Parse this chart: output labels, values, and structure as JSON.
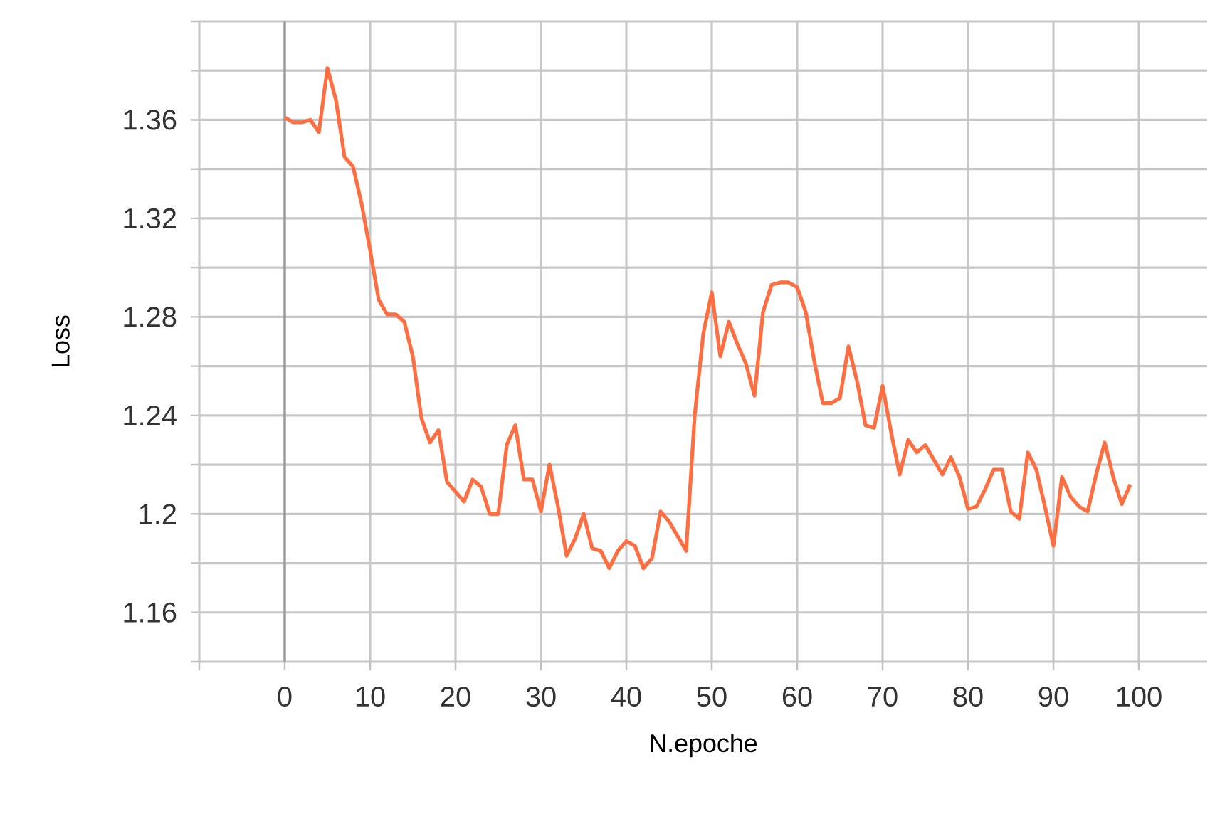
{
  "chart_data": {
    "type": "line",
    "xlabel": "N.epoche",
    "ylabel": "Loss",
    "x": [
      0,
      1,
      2,
      3,
      4,
      5,
      6,
      7,
      8,
      9,
      10,
      11,
      12,
      13,
      14,
      15,
      16,
      17,
      18,
      19,
      20,
      21,
      22,
      23,
      24,
      25,
      26,
      27,
      28,
      29,
      30,
      31,
      32,
      33,
      34,
      35,
      36,
      37,
      38,
      39,
      40,
      41,
      42,
      43,
      44,
      45,
      46,
      47,
      48,
      49,
      50,
      51,
      52,
      53,
      54,
      55,
      56,
      57,
      58,
      59,
      60,
      61,
      62,
      63,
      64,
      65,
      66,
      67,
      68,
      69,
      70,
      71,
      72,
      73,
      74,
      75,
      76,
      77,
      78,
      79,
      80,
      81,
      82,
      83,
      84,
      85,
      86,
      87,
      88,
      89,
      90,
      91,
      92,
      93,
      94,
      95,
      96,
      97,
      98,
      99
    ],
    "series": [
      {
        "color": "#ff6e40",
        "values": [
          1.361,
          1.359,
          1.359,
          1.36,
          1.355,
          1.381,
          1.368,
          1.345,
          1.341,
          1.326,
          1.307,
          1.287,
          1.281,
          1.281,
          1.278,
          1.264,
          1.239,
          1.229,
          1.234,
          1.213,
          1.209,
          1.205,
          1.214,
          1.211,
          1.2,
          1.2,
          1.228,
          1.236,
          1.214,
          1.214,
          1.201,
          1.22,
          1.203,
          1.183,
          1.19,
          1.2,
          1.186,
          1.185,
          1.178,
          1.185,
          1.189,
          1.187,
          1.178,
          1.182,
          1.201,
          1.197,
          1.191,
          1.185,
          1.24,
          1.273,
          1.29,
          1.264,
          1.278,
          1.269,
          1.261,
          1.248,
          1.282,
          1.293,
          1.294,
          1.294,
          1.292,
          1.282,
          1.262,
          1.245,
          1.245,
          1.247,
          1.268,
          1.254,
          1.236,
          1.235,
          1.252,
          1.233,
          1.216,
          1.23,
          1.225,
          1.228,
          1.222,
          1.216,
          1.223,
          1.215,
          1.202,
          1.203,
          1.21,
          1.218,
          1.218,
          1.201,
          1.198,
          1.225,
          1.218,
          1.203,
          1.187,
          1.215,
          1.207,
          1.203,
          1.201,
          1.216,
          1.229,
          1.215,
          1.204,
          1.212
        ]
      }
    ],
    "xlim": [
      -10,
      108
    ],
    "ylim": [
      1.14,
      1.4
    ],
    "xticks": [
      {
        "value": -10,
        "label": null
      },
      0,
      10,
      20,
      30,
      40,
      50,
      60,
      70,
      80,
      90,
      100
    ],
    "yticks": [
      {
        "value": 1.14,
        "label": null
      },
      1.16,
      {
        "value": 1.18,
        "label": null
      },
      1.2,
      {
        "value": 1.22,
        "label": null
      },
      1.24,
      {
        "value": 1.26,
        "label": null
      },
      1.28,
      {
        "value": 1.3,
        "label": null
      },
      1.32,
      {
        "value": 1.34,
        "label": null
      },
      1.36,
      {
        "value": 1.38,
        "label": null
      },
      {
        "value": 1.4,
        "label": null
      }
    ],
    "grid": true,
    "marker": "none",
    "line_style": "solid"
  }
}
